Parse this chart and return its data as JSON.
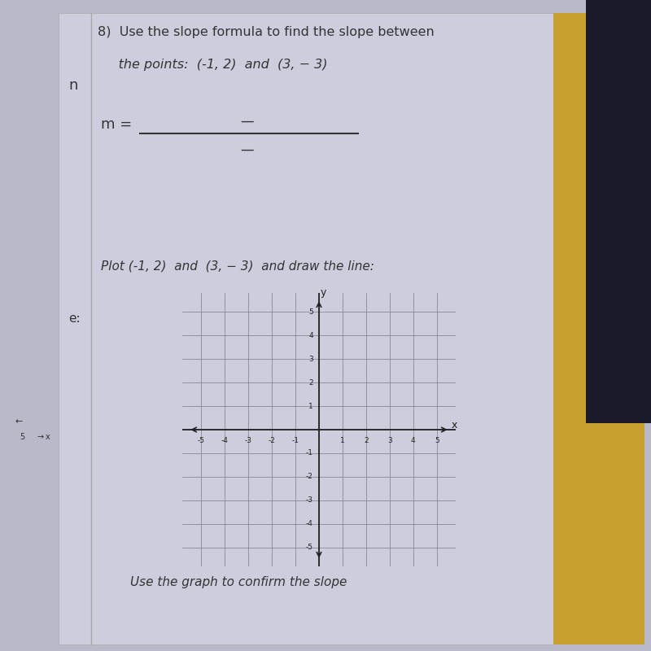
{
  "title_line1": "8)  Use the slope formula to find the slope between",
  "title_line2": "     the points:  (-1, 2)  and  (3, − 3)",
  "slope_label": "m =",
  "plot_label": "Plot (-1, 2)  and  (3, − 3)  and draw the line:",
  "confirm_label": "Use the graph to confirm the slope",
  "grid_min": -5,
  "grid_max": 5,
  "point1": [
    -1,
    2
  ],
  "point2": [
    3,
    -3
  ],
  "bg_color": "#b8baca",
  "paper_color": "#cccedd",
  "text_color": "#333333",
  "grid_color": "#888899",
  "axis_color": "#222222",
  "yellow_color": "#c8a030",
  "dark_color": "#1a1a2a"
}
